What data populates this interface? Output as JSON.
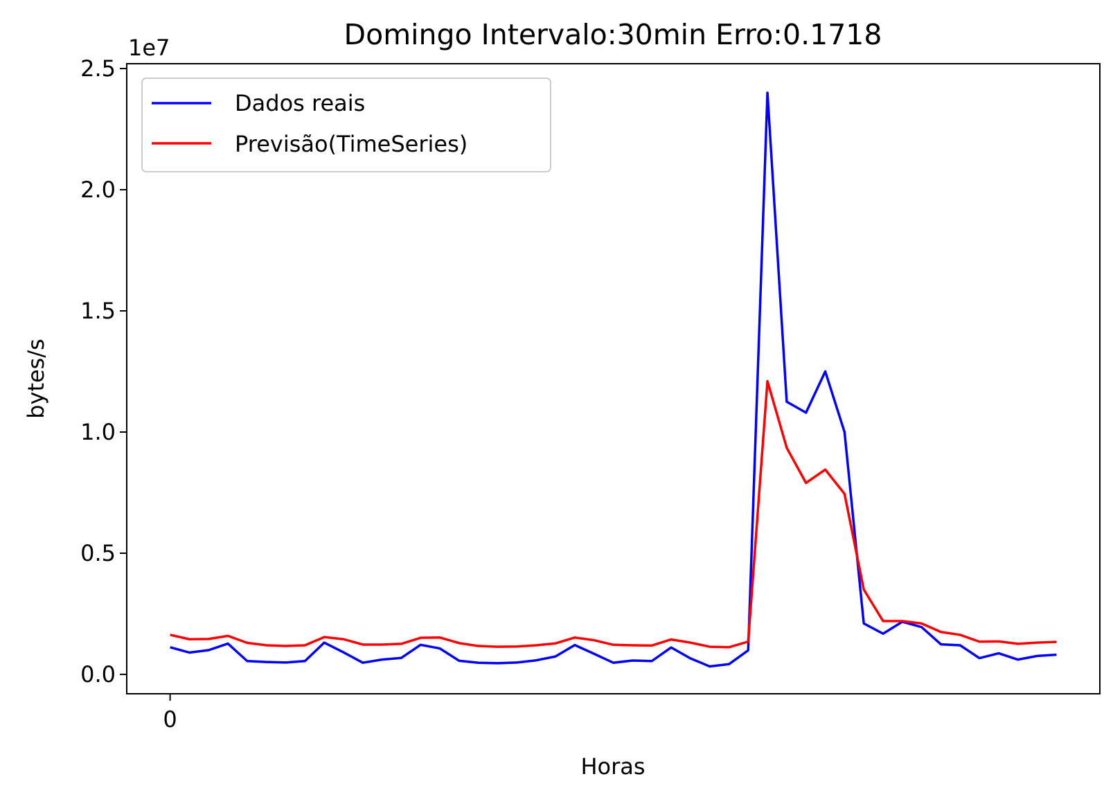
{
  "chart_data": {
    "type": "line",
    "title": "Domingo Intervalo:30min Erro:0.1718",
    "xlabel": "Horas",
    "ylabel": "bytes/s",
    "y_multiplier_label": "1e7",
    "xlim": [
      -2.25,
      48.25
    ],
    "ylim": [
      -0.08,
      2.52
    ],
    "x_ticks": [
      0
    ],
    "x_tick_labels": [
      "0"
    ],
    "y_ticks": [
      0.0,
      0.5,
      1.0,
      1.5,
      2.0,
      2.5
    ],
    "y_tick_labels": [
      "0.0",
      "0.5",
      "1.0",
      "1.5",
      "2.0",
      "2.5"
    ],
    "grid": false,
    "legend_position": "top-left",
    "x": [
      0,
      1,
      2,
      3,
      4,
      5,
      6,
      7,
      8,
      9,
      10,
      11,
      12,
      13,
      14,
      15,
      16,
      17,
      18,
      19,
      20,
      21,
      22,
      23,
      24,
      25,
      26,
      27,
      28,
      29,
      30,
      31,
      32,
      33,
      34,
      35,
      36,
      37,
      38,
      39,
      40,
      41,
      42,
      43,
      44,
      45,
      46
    ],
    "series": [
      {
        "name": "Dados reais",
        "color": "#0000ff",
        "values": [
          0.112,
          0.09,
          0.1,
          0.127,
          0.055,
          0.051,
          0.049,
          0.055,
          0.131,
          0.091,
          0.048,
          0.061,
          0.068,
          0.122,
          0.107,
          0.056,
          0.048,
          0.046,
          0.049,
          0.058,
          0.074,
          0.121,
          0.085,
          0.048,
          0.057,
          0.055,
          0.111,
          0.066,
          0.033,
          0.042,
          0.099,
          2.4,
          1.125,
          1.08,
          1.25,
          1.0,
          0.21,
          0.168,
          0.217,
          0.195,
          0.124,
          0.12,
          0.067,
          0.087,
          0.061,
          0.076,
          0.081
        ]
      },
      {
        "name": "Previsão(TimeSeries)",
        "color": "#ff0000",
        "values": [
          0.163,
          0.145,
          0.146,
          0.159,
          0.13,
          0.12,
          0.117,
          0.12,
          0.154,
          0.145,
          0.123,
          0.123,
          0.126,
          0.151,
          0.152,
          0.129,
          0.117,
          0.114,
          0.115,
          0.12,
          0.128,
          0.152,
          0.141,
          0.122,
          0.12,
          0.119,
          0.144,
          0.131,
          0.114,
          0.112,
          0.135,
          1.21,
          0.935,
          0.79,
          0.845,
          0.745,
          0.35,
          0.22,
          0.22,
          0.21,
          0.175,
          0.163,
          0.135,
          0.136,
          0.126,
          0.131,
          0.134
        ]
      }
    ]
  }
}
